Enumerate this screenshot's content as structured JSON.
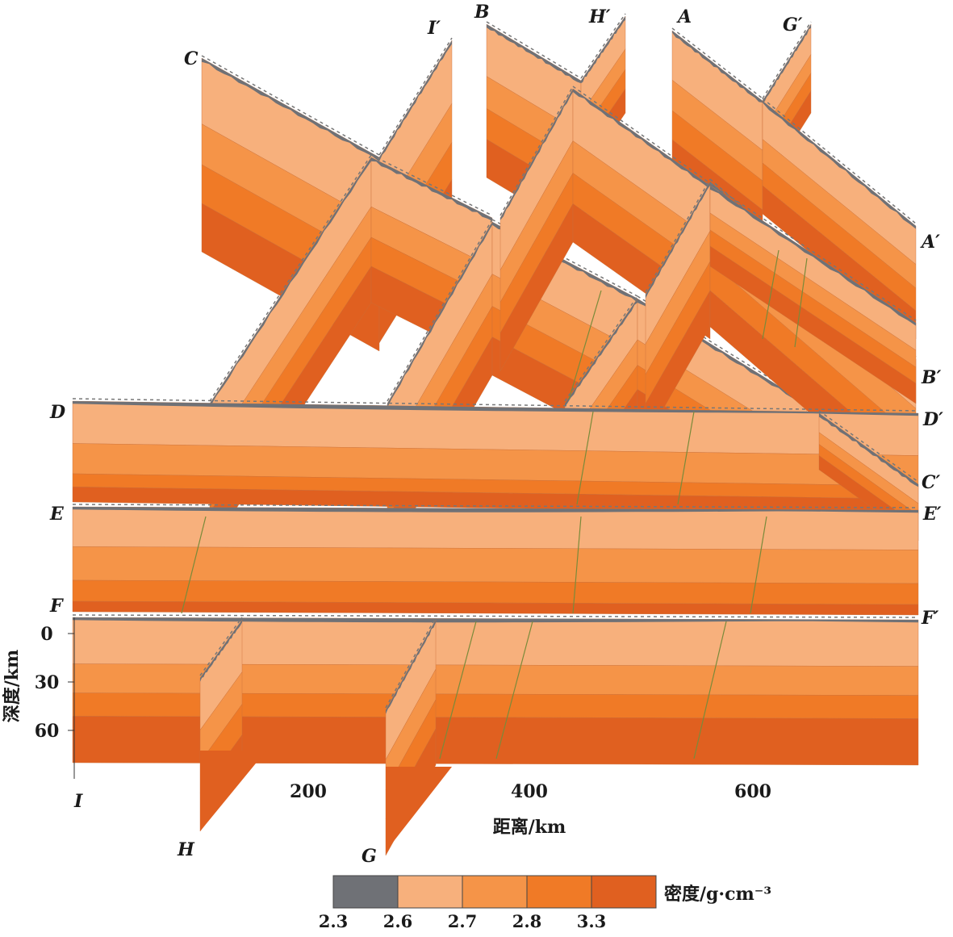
{
  "profiles": [
    {
      "id": "A",
      "start_label": "A",
      "end_label": "A′"
    },
    {
      "id": "B",
      "start_label": "B",
      "end_label": "B′"
    },
    {
      "id": "C",
      "start_label": "C",
      "end_label": "C′"
    },
    {
      "id": "D",
      "start_label": "D",
      "end_label": "D′"
    },
    {
      "id": "E",
      "start_label": "E",
      "end_label": "E′"
    },
    {
      "id": "F",
      "start_label": "F",
      "end_label": "F′"
    },
    {
      "id": "G",
      "start_label": "G",
      "end_label": "G′"
    },
    {
      "id": "H",
      "start_label": "H",
      "end_label": "H′"
    },
    {
      "id": "I",
      "start_label": "I",
      "end_label": "I′"
    }
  ],
  "depth_axis": {
    "label": "深度/km",
    "ticks": [
      "0",
      "30",
      "60"
    ],
    "tick_values": [
      0,
      30,
      60
    ]
  },
  "distance_axis": {
    "label": "距离/km",
    "ticks": [
      "200",
      "400",
      "600"
    ],
    "tick_values": [
      200,
      400,
      600
    ]
  },
  "legend": {
    "title": "密度/g·cm⁻³",
    "items": [
      {
        "value": "2.3",
        "color": "#6f7176"
      },
      {
        "value": "2.6",
        "color": "#f7b07c"
      },
      {
        "value": "2.7",
        "color": "#f59448"
      },
      {
        "value": "2.8",
        "color": "#f07a26"
      },
      {
        "value": "3.3",
        "color": "#e06020"
      }
    ]
  },
  "layer_colors": [
    "#f7b07c",
    "#f59448",
    "#f07a26",
    "#e06020"
  ],
  "sediment_color": "#6f7176"
}
